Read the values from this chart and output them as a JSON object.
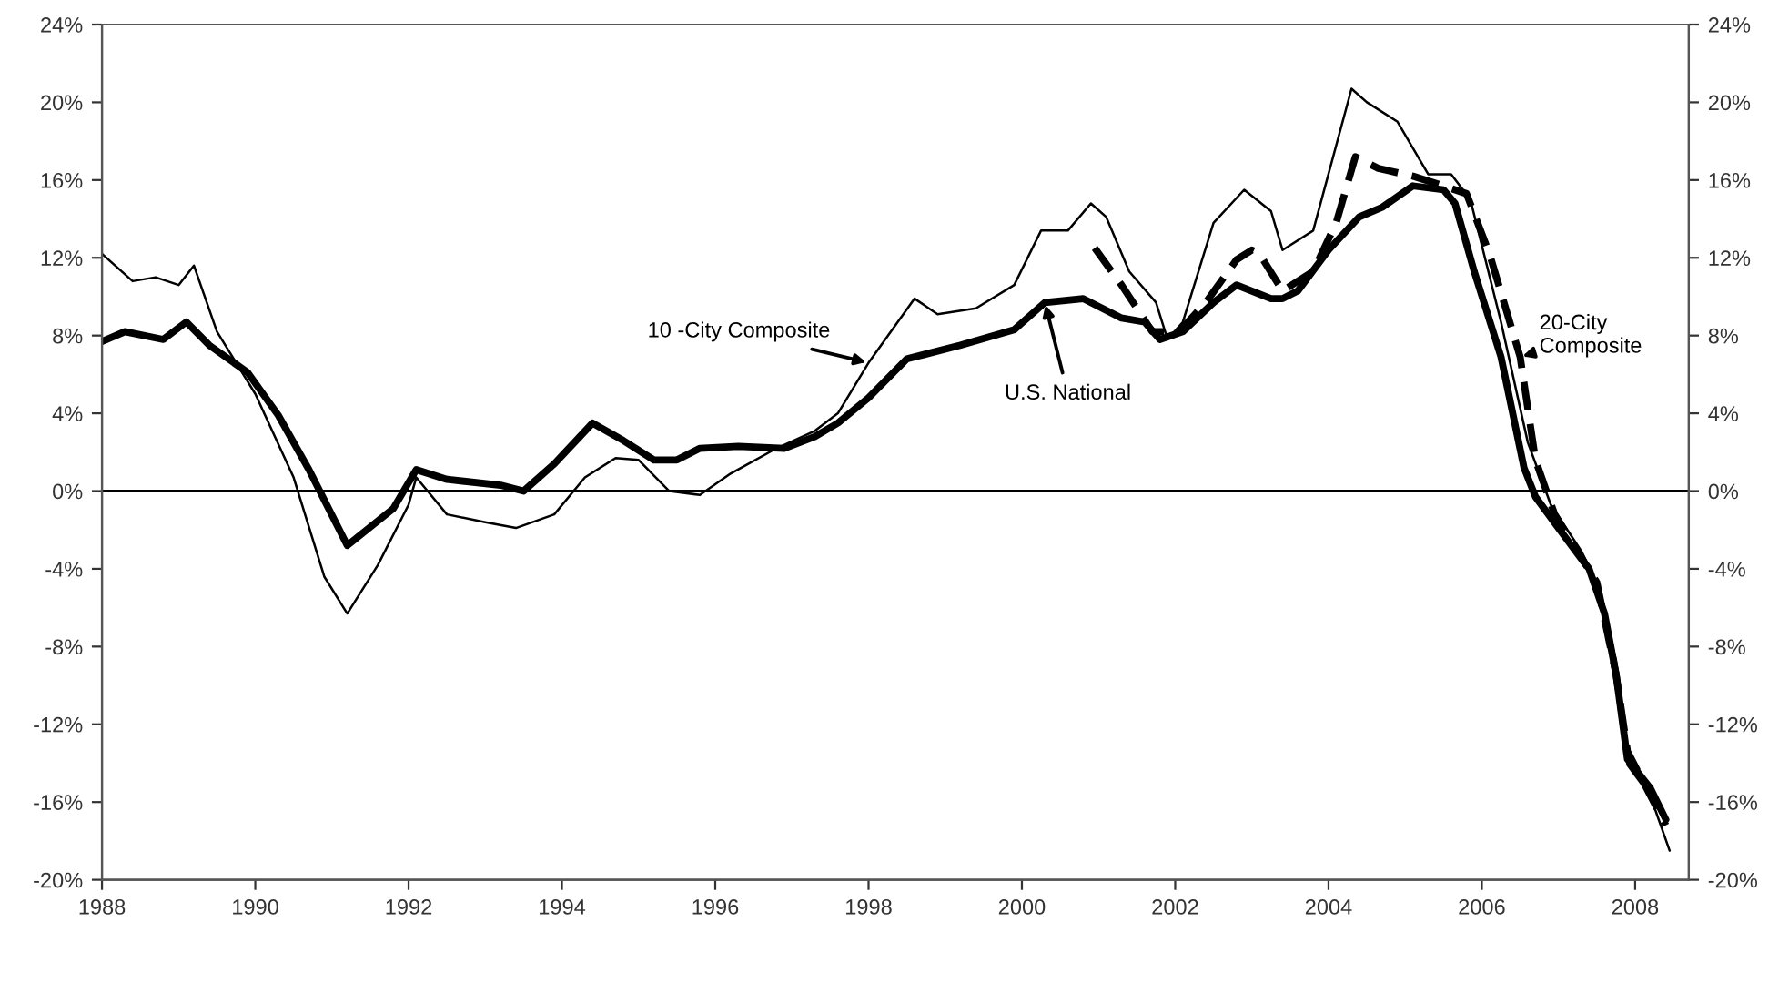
{
  "chart_data": {
    "type": "line",
    "series": [
      {
        "name": "10 -City Composite",
        "color": "#000000",
        "line_style": "solid",
        "x": [
          1988.0,
          1988.4,
          1988.7,
          1989.0,
          1989.2,
          1989.5,
          1990.0,
          1990.5,
          1990.9,
          1991.2,
          1991.6,
          1992.0,
          1992.1,
          1992.5,
          1993.0,
          1993.4,
          1993.9,
          1994.3,
          1994.7,
          1995.0,
          1995.4,
          1995.8,
          1996.2,
          1996.8,
          1997.3,
          1997.6,
          1998.0,
          1998.6,
          1998.9,
          1999.4,
          1999.9,
          2000.25,
          2000.6,
          2000.9,
          2001.1,
          2001.4,
          2001.75,
          2001.9,
          2002.1,
          2002.5,
          2002.9,
          2003.25,
          2003.4,
          2003.8,
          2004.3,
          2004.5,
          2004.9,
          2005.3,
          2005.6,
          2005.85,
          2006.25,
          2006.6,
          2006.9,
          2007.3,
          2007.5,
          2007.75,
          2007.9,
          2008.2,
          2008.45
        ],
        "values": [
          12.2,
          10.8,
          11.0,
          10.6,
          11.6,
          8.2,
          5.0,
          0.7,
          -4.4,
          -6.3,
          -3.8,
          -0.7,
          0.7,
          -1.2,
          -1.6,
          -1.9,
          -1.2,
          0.7,
          1.7,
          1.6,
          0,
          -0.2,
          0.9,
          2.2,
          3.1,
          4.0,
          6.6,
          9.9,
          9.1,
          9.4,
          10.6,
          13.4,
          13.4,
          14.8,
          14.1,
          11.3,
          9.7,
          7.8,
          8.7,
          13.8,
          15.5,
          14.4,
          12.4,
          13.4,
          20.7,
          20.0,
          19.0,
          16.3,
          16.3,
          15.0,
          8.7,
          2.5,
          -0.7,
          -3.1,
          -4.7,
          -8.7,
          -14.1,
          -15.7,
          -18.5
        ]
      },
      {
        "name": "U.S. National",
        "color": "#000000",
        "line_style": "solid",
        "x": [
          1988.0,
          1988.3,
          1988.8,
          1989.1,
          1989.4,
          1989.9,
          1990.3,
          1990.7,
          1991.2,
          1991.8,
          1992.1,
          1992.5,
          1993.2,
          1993.5,
          1993.9,
          1994.4,
          1994.8,
          1995.2,
          1995.5,
          1995.8,
          1996.3,
          1996.9,
          1997.3,
          1997.6,
          1998.0,
          1998.5,
          1999.2,
          1999.9,
          2000.3,
          2000.8,
          2001.3,
          2001.6,
          2001.8,
          2002.1,
          2002.5,
          2002.8,
          2003.25,
          2003.4,
          2003.6,
          2004.0,
          2004.4,
          2004.7,
          2005.1,
          2005.5,
          2005.65,
          2005.9,
          2006.25,
          2006.55,
          2006.7,
          2007.0,
          2007.3,
          2007.4,
          2007.6,
          2007.75,
          2007.9,
          2008.2,
          2008.4
        ],
        "values": [
          7.7,
          8.2,
          7.8,
          8.7,
          7.5,
          6.1,
          3.9,
          1.1,
          -2.8,
          -0.9,
          1.1,
          0.6,
          0.3,
          0,
          1.4,
          3.5,
          2.6,
          1.6,
          1.6,
          2.2,
          2.3,
          2.2,
          2.8,
          3.5,
          4.8,
          6.8,
          7.5,
          8.3,
          9.7,
          9.9,
          8.9,
          8.7,
          7.8,
          8.2,
          9.7,
          10.6,
          9.9,
          9.9,
          10.3,
          12.4,
          14.1,
          14.6,
          15.7,
          15.5,
          14.8,
          11.3,
          6.9,
          1.2,
          -0.3,
          -1.9,
          -3.5,
          -4.0,
          -6.3,
          -9.4,
          -13.8,
          -15.3,
          -16.9
        ]
      },
      {
        "name": "20-City Composite",
        "color": "#000000",
        "line_style": "dashed",
        "x": [
          2000.95,
          2001.3,
          2001.7,
          2002.05,
          2002.4,
          2002.8,
          2003.0,
          2003.1,
          2003.4,
          2003.8,
          2004.1,
          2004.35,
          2004.65,
          2005.1,
          2005.5,
          2005.8,
          2006.1,
          2006.5,
          2006.7,
          2006.95,
          2007.2,
          2007.5,
          2007.75,
          2007.9,
          2008.4
        ],
        "values": [
          12.5,
          10.6,
          8.2,
          8.2,
          9.7,
          11.9,
          12.4,
          12.2,
          10.3,
          11.3,
          13.8,
          17.2,
          16.6,
          16.2,
          15.7,
          15.3,
          12.2,
          6.9,
          1.6,
          -1.2,
          -2.8,
          -4.7,
          -9.4,
          -13.4,
          -17.2
        ]
      }
    ],
    "xlim": [
      1988,
      2008.7
    ],
    "xticks": [
      1988,
      1990,
      1992,
      1994,
      1996,
      1998,
      2000,
      2002,
      2004,
      2006,
      2008
    ],
    "ylim": [
      -20,
      24
    ],
    "yticks": [
      {
        "value": -20,
        "label": "-20%"
      },
      {
        "value": -16,
        "label": "-16%"
      },
      {
        "value": -12,
        "label": "-12%"
      },
      {
        "value": -8,
        "label": "-8%"
      },
      {
        "value": -4,
        "label": "-4%"
      },
      {
        "value": 0,
        "label": "0%"
      },
      {
        "value": 4,
        "label": "4%"
      },
      {
        "value": 8,
        "label": "8%"
      },
      {
        "value": 12,
        "label": "12%"
      },
      {
        "value": 16,
        "label": "16%"
      },
      {
        "value": 20,
        "label": "20%"
      },
      {
        "value": 24,
        "label": "24%"
      }
    ],
    "y2lim": [
      -20,
      24
    ],
    "y2ticks": [
      {
        "value": -20,
        "label": "-20%"
      },
      {
        "value": -16,
        "label": "-16%"
      },
      {
        "value": -12,
        "label": "-12%"
      },
      {
        "value": -8,
        "label": "-8%"
      },
      {
        "value": -4,
        "label": "-4%"
      },
      {
        "value": 0,
        "label": "0%"
      },
      {
        "value": 4,
        "label": "4%"
      },
      {
        "value": 8,
        "label": "8%"
      },
      {
        "value": 12,
        "label": "12%"
      },
      {
        "value": 16,
        "label": "16%"
      },
      {
        "value": 20,
        "label": "20%"
      },
      {
        "value": 24,
        "label": "24%"
      }
    ],
    "ref_lines": [
      {
        "axis": "y",
        "value": 0,
        "color": "#000000"
      }
    ],
    "grid": false,
    "legend": false,
    "marker": "none"
  }
}
